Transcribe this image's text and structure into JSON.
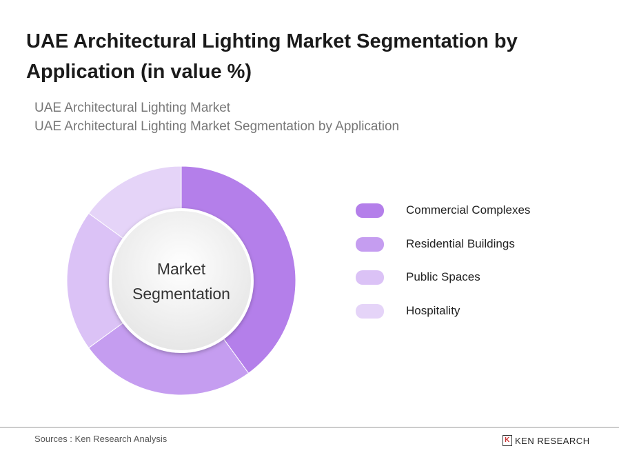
{
  "title": "UAE Architectural Lighting Market Segmentation by Application (in value %)",
  "subtitles": [
    "UAE Architectural Lighting Market",
    "UAE Architectural Lighting Market Segmentation by Application"
  ],
  "chart_data": {
    "type": "pie",
    "variant": "donut",
    "center_label": [
      "Market",
      "Segmentation"
    ],
    "categories": [
      "Commercial Complexes",
      "Residential Buildings",
      "Public Spaces",
      "Hospitality"
    ],
    "values": [
      40,
      25,
      20,
      15
    ],
    "colors": [
      "#b47fea",
      "#c59df0",
      "#dbc2f6",
      "#e5d4f8"
    ],
    "legend_position": "right"
  },
  "footer": {
    "source": "Sources : Ken Research Analysis",
    "logo": "KEN RESEARCH"
  }
}
